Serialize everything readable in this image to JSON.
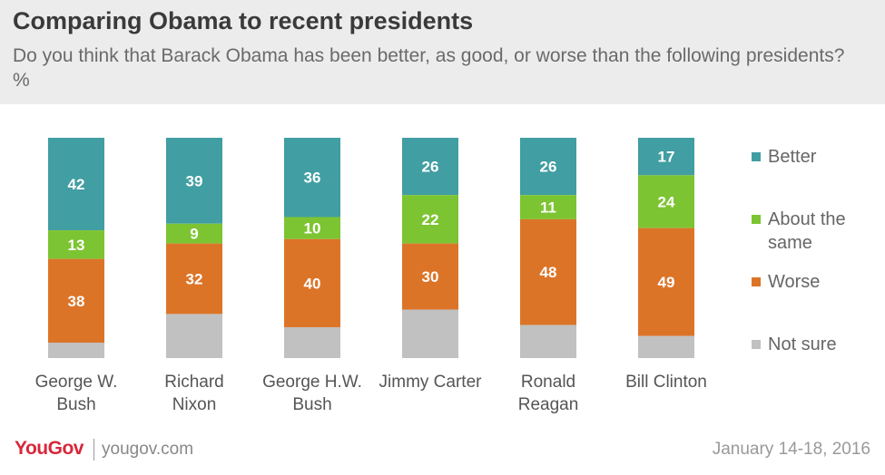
{
  "chart_data": {
    "type": "stacked_bar",
    "title": "Comparing Obama to recent presidents",
    "subtitle": "Do you think that Barack Obama has been better, as good, or worse than the following presidents? %",
    "categories": [
      [
        "George W.",
        "Bush"
      ],
      [
        "Richard",
        "Nixon"
      ],
      [
        "George H.W.",
        "Bush"
      ],
      [
        "Jimmy Carter"
      ],
      [
        "Ronald",
        "Reagan"
      ],
      [
        "Bill Clinton"
      ]
    ],
    "ylim": [
      0,
      100
    ],
    "series": [
      {
        "name": "Better",
        "color": "#419ea2",
        "data_labels": true,
        "values": [
          42,
          39,
          36,
          26,
          26,
          17
        ]
      },
      {
        "name": "About the same",
        "color": "#7dc432",
        "data_labels": true,
        "values": [
          13,
          9,
          10,
          22,
          11,
          24
        ]
      },
      {
        "name": "Worse",
        "color": "#dc7428",
        "data_labels": true,
        "values": [
          38,
          32,
          40,
          30,
          48,
          49
        ]
      },
      {
        "name": "Not sure",
        "color": "#c1c1c1",
        "data_labels": false,
        "values": [
          7,
          20,
          14,
          22,
          15,
          10
        ]
      }
    ]
  },
  "footer": {
    "logo": "YouGov",
    "source": "yougov.com",
    "date": "January 14-18, 2016"
  }
}
